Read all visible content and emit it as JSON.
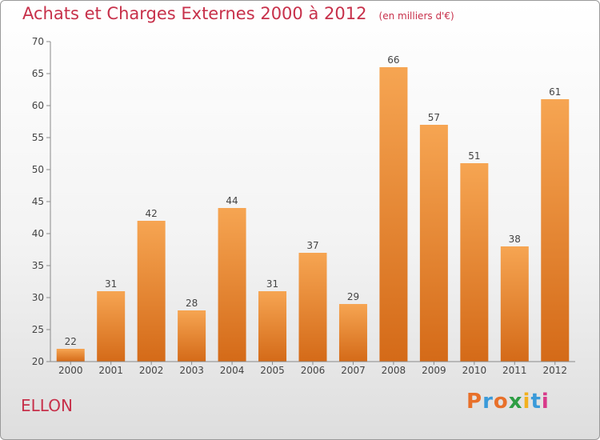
{
  "header": {
    "title": "Achats et Charges Externes 2000 à 2012",
    "unit": "(en milliers d'€)"
  },
  "footer": {
    "city": "ELLON",
    "brand": "Proxiti",
    "brand_colors": [
      "#e8702a",
      "#3a9ad9",
      "#e8702a",
      "#2e9e44",
      "#f2b01e",
      "#3a9ad9",
      "#d83a8a"
    ]
  },
  "chart_data": {
    "type": "bar",
    "title": "Achats et Charges Externes 2000 à 2012",
    "subtitle": "(en milliers d'€)",
    "categories": [
      "2000",
      "2001",
      "2002",
      "2003",
      "2004",
      "2005",
      "2006",
      "2007",
      "2008",
      "2009",
      "2010",
      "2011",
      "2012"
    ],
    "values": [
      22,
      31,
      42,
      28,
      44,
      31,
      37,
      29,
      66,
      57,
      51,
      38,
      61
    ],
    "ylim": [
      20,
      70
    ],
    "yticks": [
      20,
      25,
      30,
      35,
      40,
      45,
      50,
      55,
      60,
      65,
      70
    ],
    "grid": false,
    "bar_color_top": "#f6a552",
    "bar_color_bottom": "#d46a18"
  }
}
